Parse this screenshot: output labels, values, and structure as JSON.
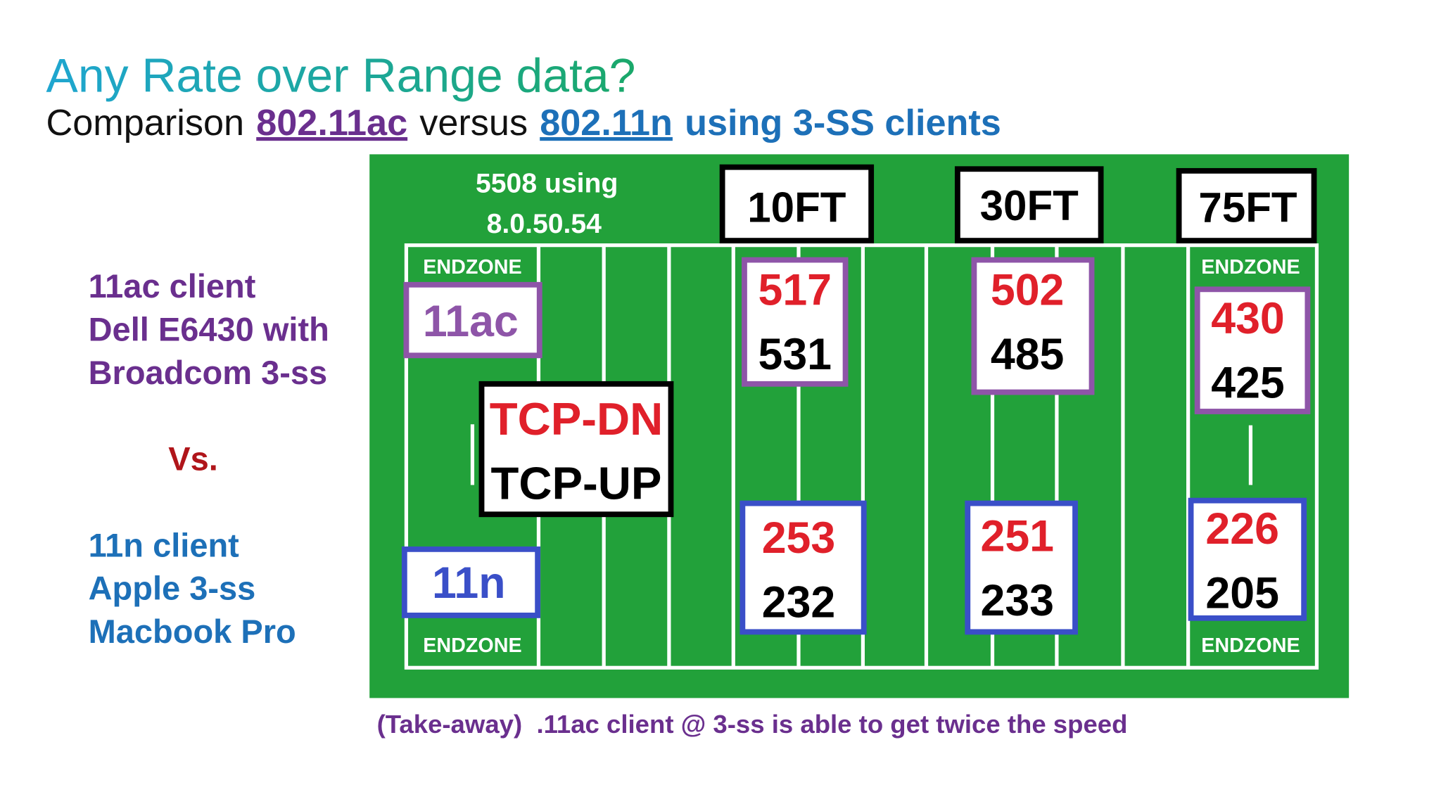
{
  "header": {
    "title": "Any Rate over Range data?",
    "subtitle": [
      "Comparison",
      "802.11ac",
      "versus",
      "802.11n",
      "using 3-SS clients"
    ]
  },
  "left_panel": {
    "ac_lines": [
      "11ac client",
      "Dell E6430 with",
      "Broadcom 3-ss"
    ],
    "vs": "Vs.",
    "n_lines": [
      "11n client",
      "Apple 3-ss",
      "Macbook Pro"
    ]
  },
  "field": {
    "controller": [
      "5508 using",
      "8.0.50.54"
    ],
    "endzone": "ENDZONE",
    "client_ac": "11ac",
    "client_n": "11n",
    "legend": [
      "TCP-DN",
      "TCP-UP"
    ],
    "distances": [
      {
        "label": "10FT",
        "ac": [
          517,
          531
        ],
        "n": [
          253,
          232
        ]
      },
      {
        "label": "30FT",
        "ac": [
          502,
          485
        ],
        "n": [
          251,
          233
        ]
      },
      {
        "label": "75FT",
        "ac": [
          430,
          425
        ],
        "n": [
          226,
          205
        ]
      }
    ]
  },
  "takeaway": "(Take-away)  .11ac client @ 3-ss is able to get twice the speed"
}
